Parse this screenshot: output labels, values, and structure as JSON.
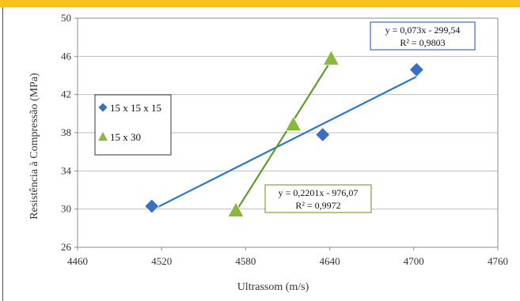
{
  "chart_data": {
    "type": "scatter",
    "title": "",
    "xlabel": "Ultrassom (m/s)",
    "ylabel": "Resistência à Compressão (MPa)",
    "xlim": [
      4460,
      4760
    ],
    "ylim": [
      26,
      50
    ],
    "x_ticks": [
      "4460",
      "4520",
      "4580",
      "4640",
      "4700",
      "4760"
    ],
    "y_ticks": [
      "26",
      "30",
      "34",
      "38",
      "42",
      "46",
      "50"
    ],
    "grid": true,
    "legend_position": "left-middle",
    "series": [
      {
        "name": "15 x 15 x 15",
        "marker": "diamond",
        "color": "#3a6fc4",
        "points": [
          {
            "x": 4513,
            "y": 30.3
          },
          {
            "x": 4635,
            "y": 37.8
          },
          {
            "x": 4702,
            "y": 44.6
          }
        ],
        "trendline": {
          "color": "#2b78c8",
          "x": [
            4513,
            4702
          ],
          "equation": "y = 0,073x - 299,54",
          "r2": "R² = 0,9803",
          "box_color": "#3a6fc4"
        }
      },
      {
        "name": "15 x 30",
        "marker": "triangle",
        "color": "#8ab83c",
        "points": [
          {
            "x": 4573,
            "y": 29.9
          },
          {
            "x": 4614,
            "y": 38.9
          },
          {
            "x": 4641,
            "y": 45.8
          }
        ],
        "trendline": {
          "color": "#5f9a2c",
          "x": [
            4573,
            4641
          ],
          "equation": "y = 0,2201x - 976,07",
          "r2": "R² = 0,9972",
          "box_color": "#7aa33a"
        }
      }
    ]
  }
}
